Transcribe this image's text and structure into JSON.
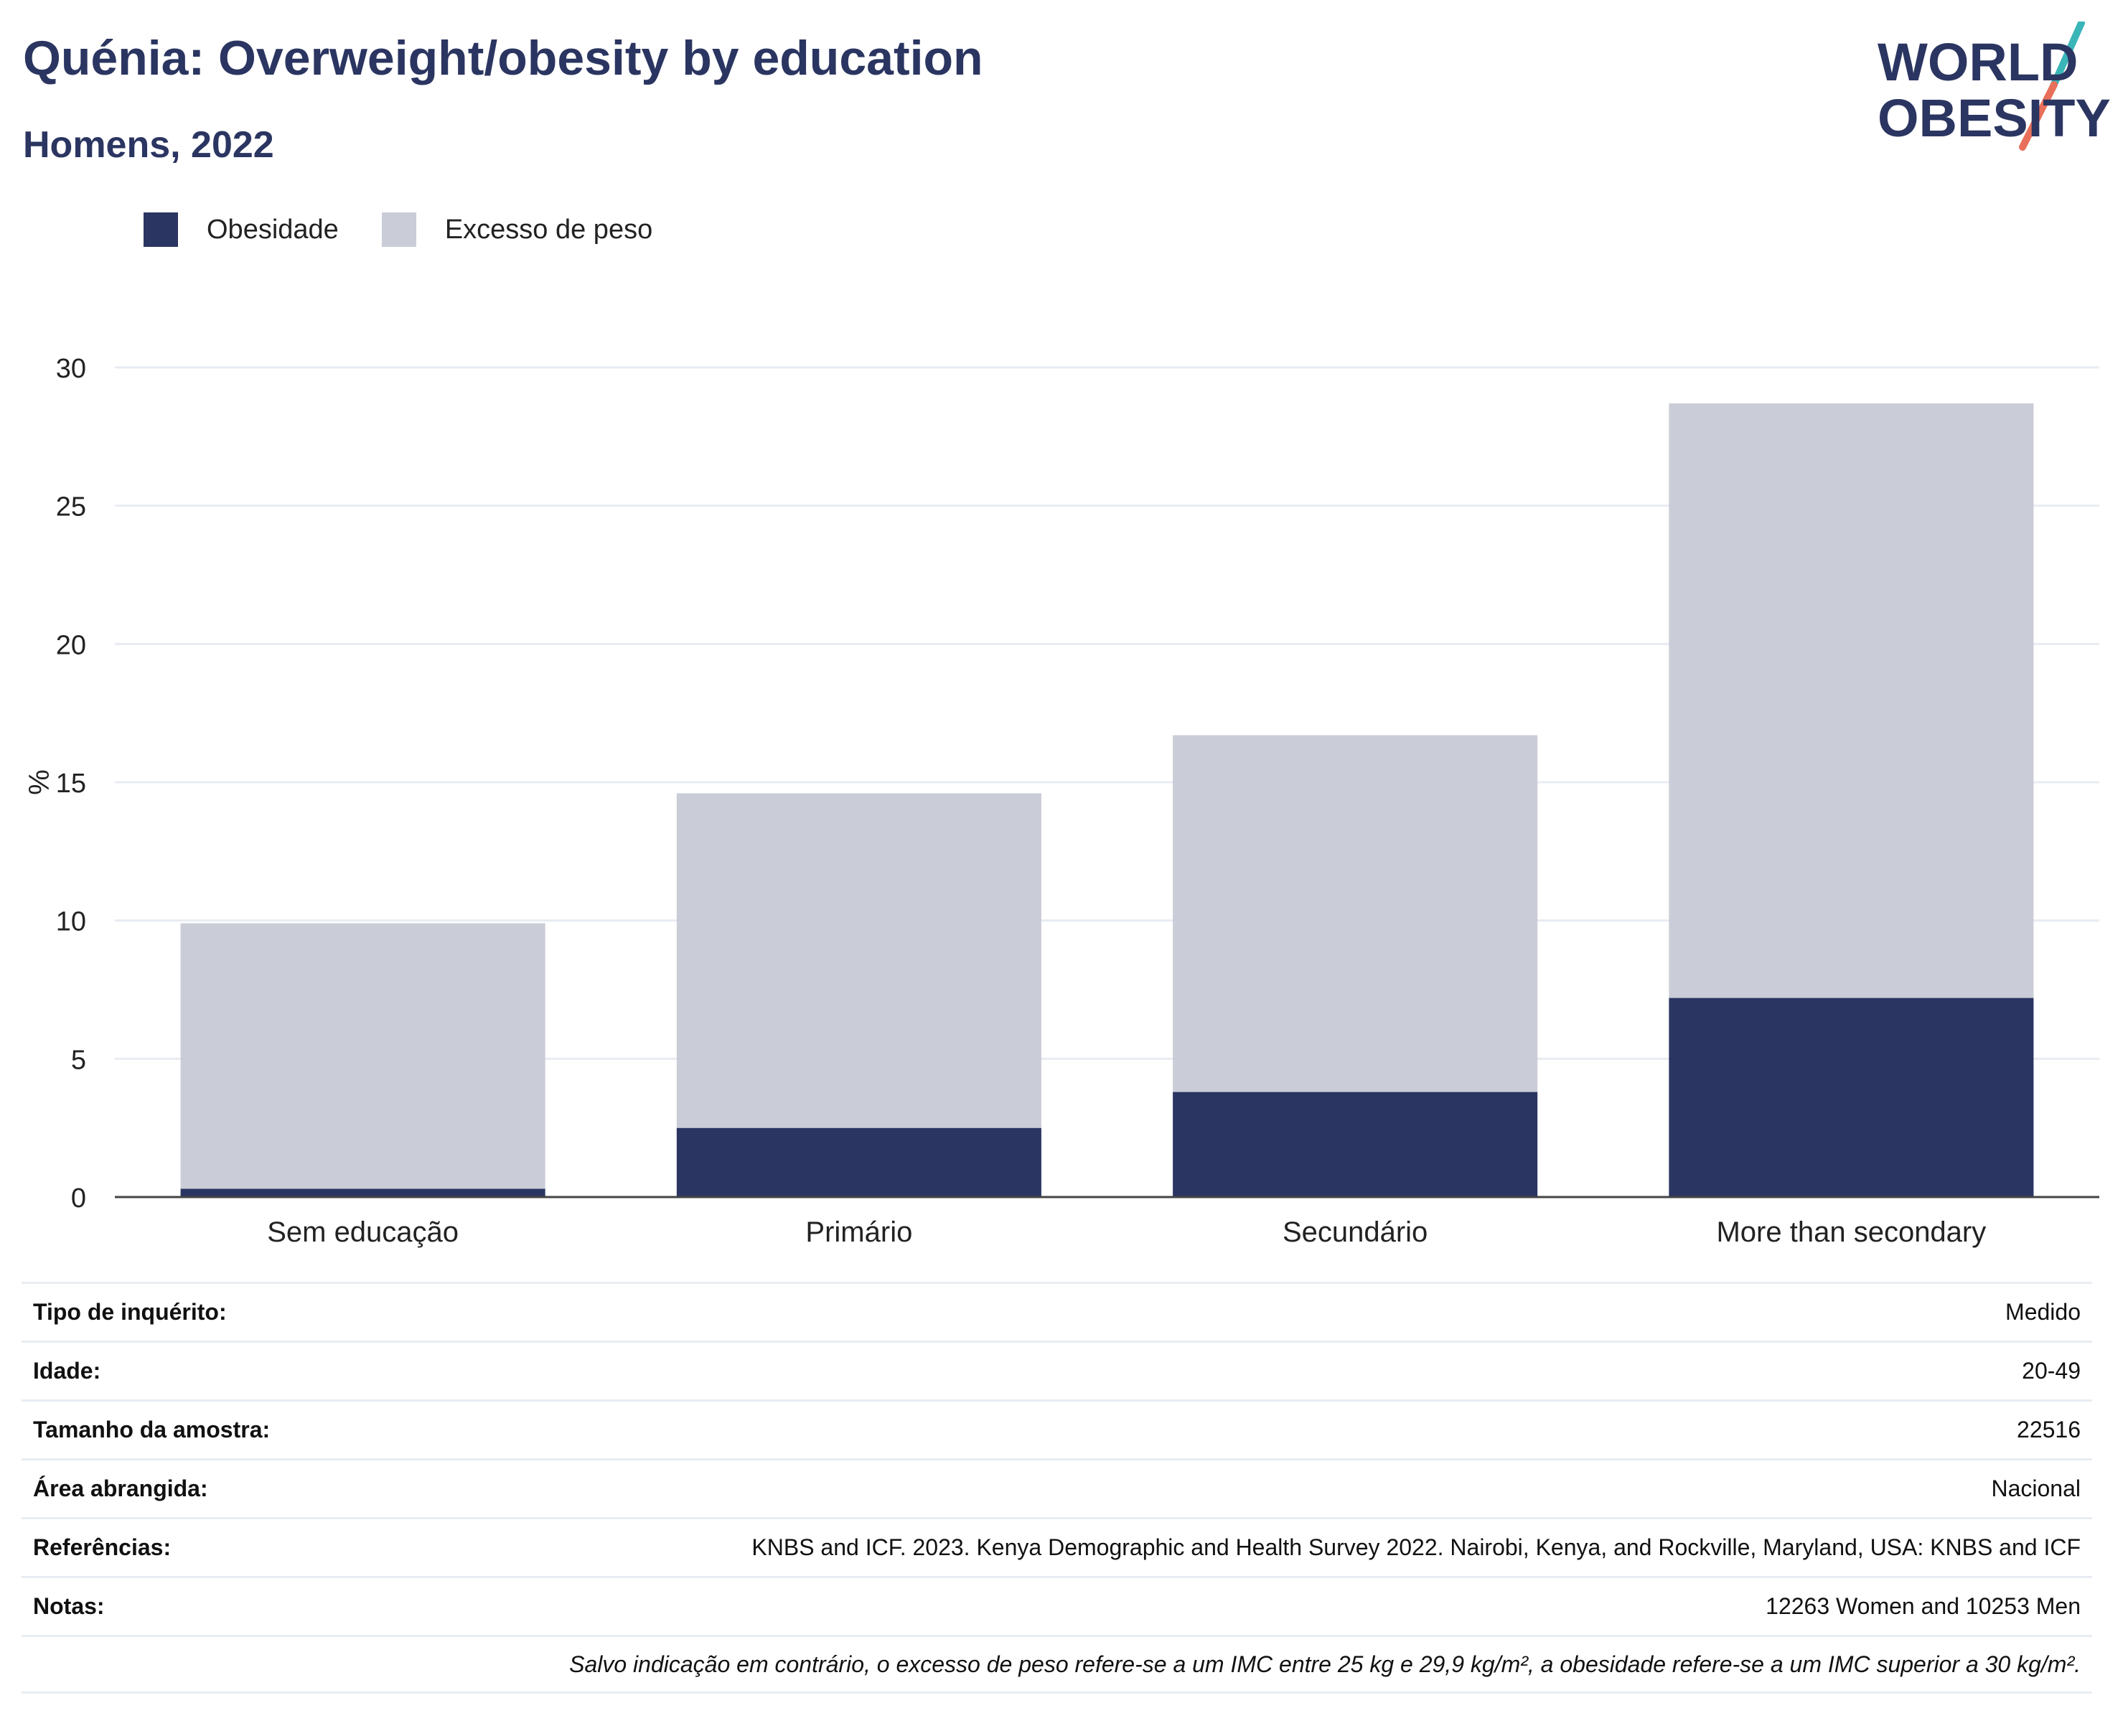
{
  "header": {
    "title": "Quénia: Overweight/obesity by education",
    "subtitle": "Homens, 2022"
  },
  "logo": {
    "line1": "WORLD",
    "line2": "OBESITY"
  },
  "legend": [
    {
      "label": "Obesidade",
      "color": "#2b3562"
    },
    {
      "label": "Excesso de peso",
      "color": "#caccd7"
    }
  ],
  "chart_data": {
    "type": "bar",
    "stacked": true,
    "categories": [
      "Sem educação",
      "Primário",
      "Secundário",
      "More than secondary"
    ],
    "series": [
      {
        "name": "Obesidade",
        "values": [
          0.3,
          2.5,
          3.8,
          7.2
        ],
        "color": "#2b3562"
      },
      {
        "name": "Excesso de peso",
        "values": [
          9.6,
          12.1,
          12.9,
          21.5
        ],
        "color": "#caccd7"
      }
    ],
    "title": "",
    "xlabel": "",
    "ylabel": "%",
    "ylim": [
      0,
      30
    ],
    "yticks": [
      0,
      5,
      10,
      15,
      20,
      25,
      30
    ],
    "grid": true,
    "legend_position": "top-left"
  },
  "meta": [
    {
      "key": "Tipo de inquérito:",
      "value": "Medido"
    },
    {
      "key": "Idade:",
      "value": "20-49"
    },
    {
      "key": "Tamanho da amostra:",
      "value": "22516"
    },
    {
      "key": "Área abrangida:",
      "value": "Nacional"
    },
    {
      "key": "Referências:",
      "value": "KNBS and ICF. 2023. Kenya Demographic and Health Survey 2022. Nairobi, Kenya, and Rockville, Maryland, USA: KNBS and ICF"
    },
    {
      "key": "Notas:",
      "value": "12263 Women and 10253 Men"
    },
    {
      "key": "",
      "value": "Salvo indicação em contrário, o excesso de peso refere-se a um IMC entre 25 kg e 29,9 kg/m², a obesidade refere-se a um IMC superior a 30 kg/m²."
    }
  ]
}
